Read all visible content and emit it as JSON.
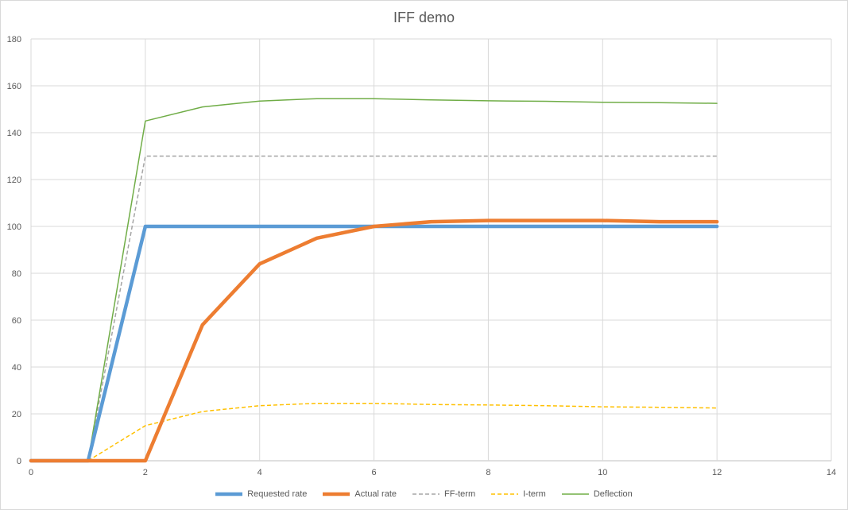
{
  "chart_data": {
    "type": "line",
    "title": "IFF demo",
    "xlabel": "",
    "ylabel": "",
    "xlim": [
      0,
      14
    ],
    "ylim": [
      0,
      180
    ],
    "x_ticks": [
      0,
      2,
      4,
      6,
      8,
      10,
      12,
      14
    ],
    "y_ticks": [
      0,
      20,
      40,
      60,
      80,
      100,
      120,
      140,
      160,
      180
    ],
    "grid": true,
    "legend_position": "bottom",
    "x": [
      0,
      1,
      2,
      3,
      4,
      5,
      6,
      7,
      8,
      9,
      10,
      11,
      12
    ],
    "series": [
      {
        "name": "Requested rate",
        "color": "#5b9bd5",
        "style": "solid",
        "weight": "heavy",
        "values": [
          0,
          0,
          100,
          100,
          100,
          100,
          100,
          100,
          100,
          100,
          100,
          100,
          100
        ]
      },
      {
        "name": "Actual rate",
        "color": "#ed7d31",
        "style": "solid",
        "weight": "heavy",
        "values": [
          0,
          0,
          0,
          58,
          84,
          95,
          100,
          102,
          102.5,
          102.5,
          102.5,
          102,
          102
        ]
      },
      {
        "name": "FF-term",
        "color": "#a5a5a5",
        "style": "dashed",
        "weight": "thin",
        "values": [
          0,
          0,
          130,
          130,
          130,
          130,
          130,
          130,
          130,
          130,
          130,
          130,
          130
        ]
      },
      {
        "name": "I-term",
        "color": "#ffc000",
        "style": "dashed",
        "weight": "thin",
        "values": [
          0,
          0,
          15,
          21,
          23.5,
          24.5,
          24.5,
          24,
          23.8,
          23.5,
          23,
          22.8,
          22.5
        ]
      },
      {
        "name": "Deflection",
        "color": "#70ad47",
        "style": "solid",
        "weight": "thin",
        "values": [
          0,
          0,
          145,
          151,
          153.5,
          154.5,
          154.5,
          154,
          153.6,
          153.4,
          153,
          152.8,
          152.5
        ]
      }
    ]
  }
}
